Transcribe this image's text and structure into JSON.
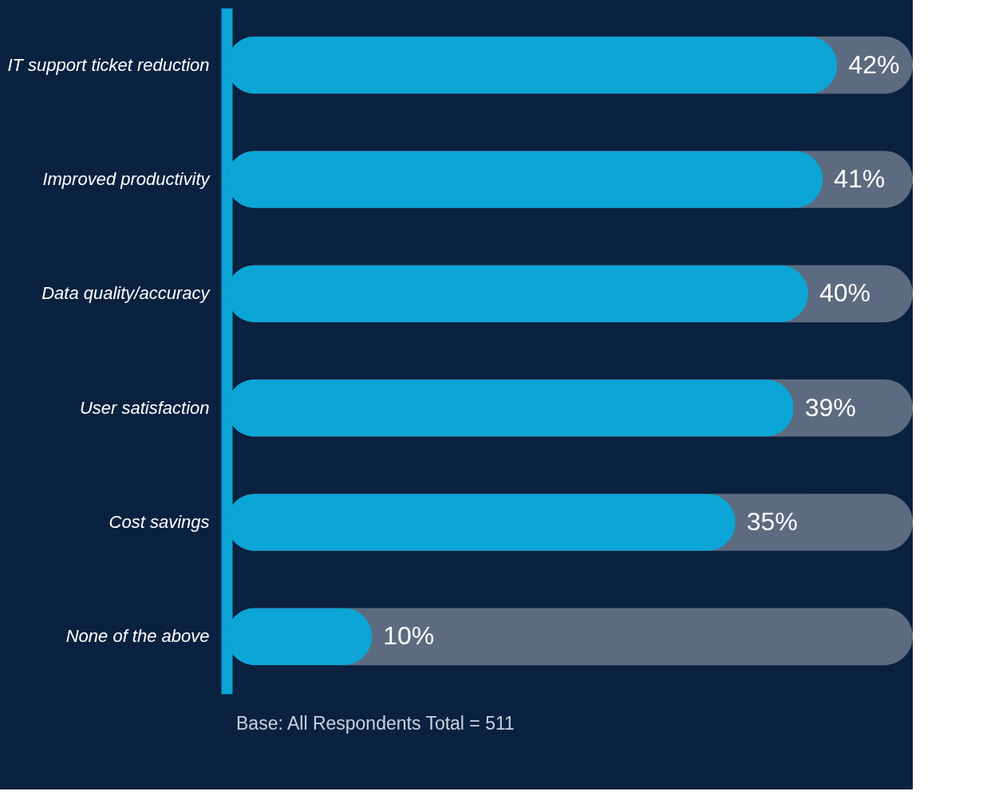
{
  "chart_data": {
    "type": "bar",
    "orientation": "horizontal",
    "categories": [
      "IT support ticket reduction",
      "Improved productivity",
      "Data quality/accuracy",
      "User satisfaction",
      "Cost savings",
      "None of the above"
    ],
    "values": [
      42,
      41,
      40,
      39,
      35,
      10
    ],
    "color": "#0ba5d6",
    "value_labels": [
      "42%",
      "41%",
      "40%",
      "39%",
      "35%",
      "10%"
    ],
    "tick_labels": "y",
    "grid": false,
    "annotations": [
      "Base:  All Respondents Total = 511"
    ]
  }
}
